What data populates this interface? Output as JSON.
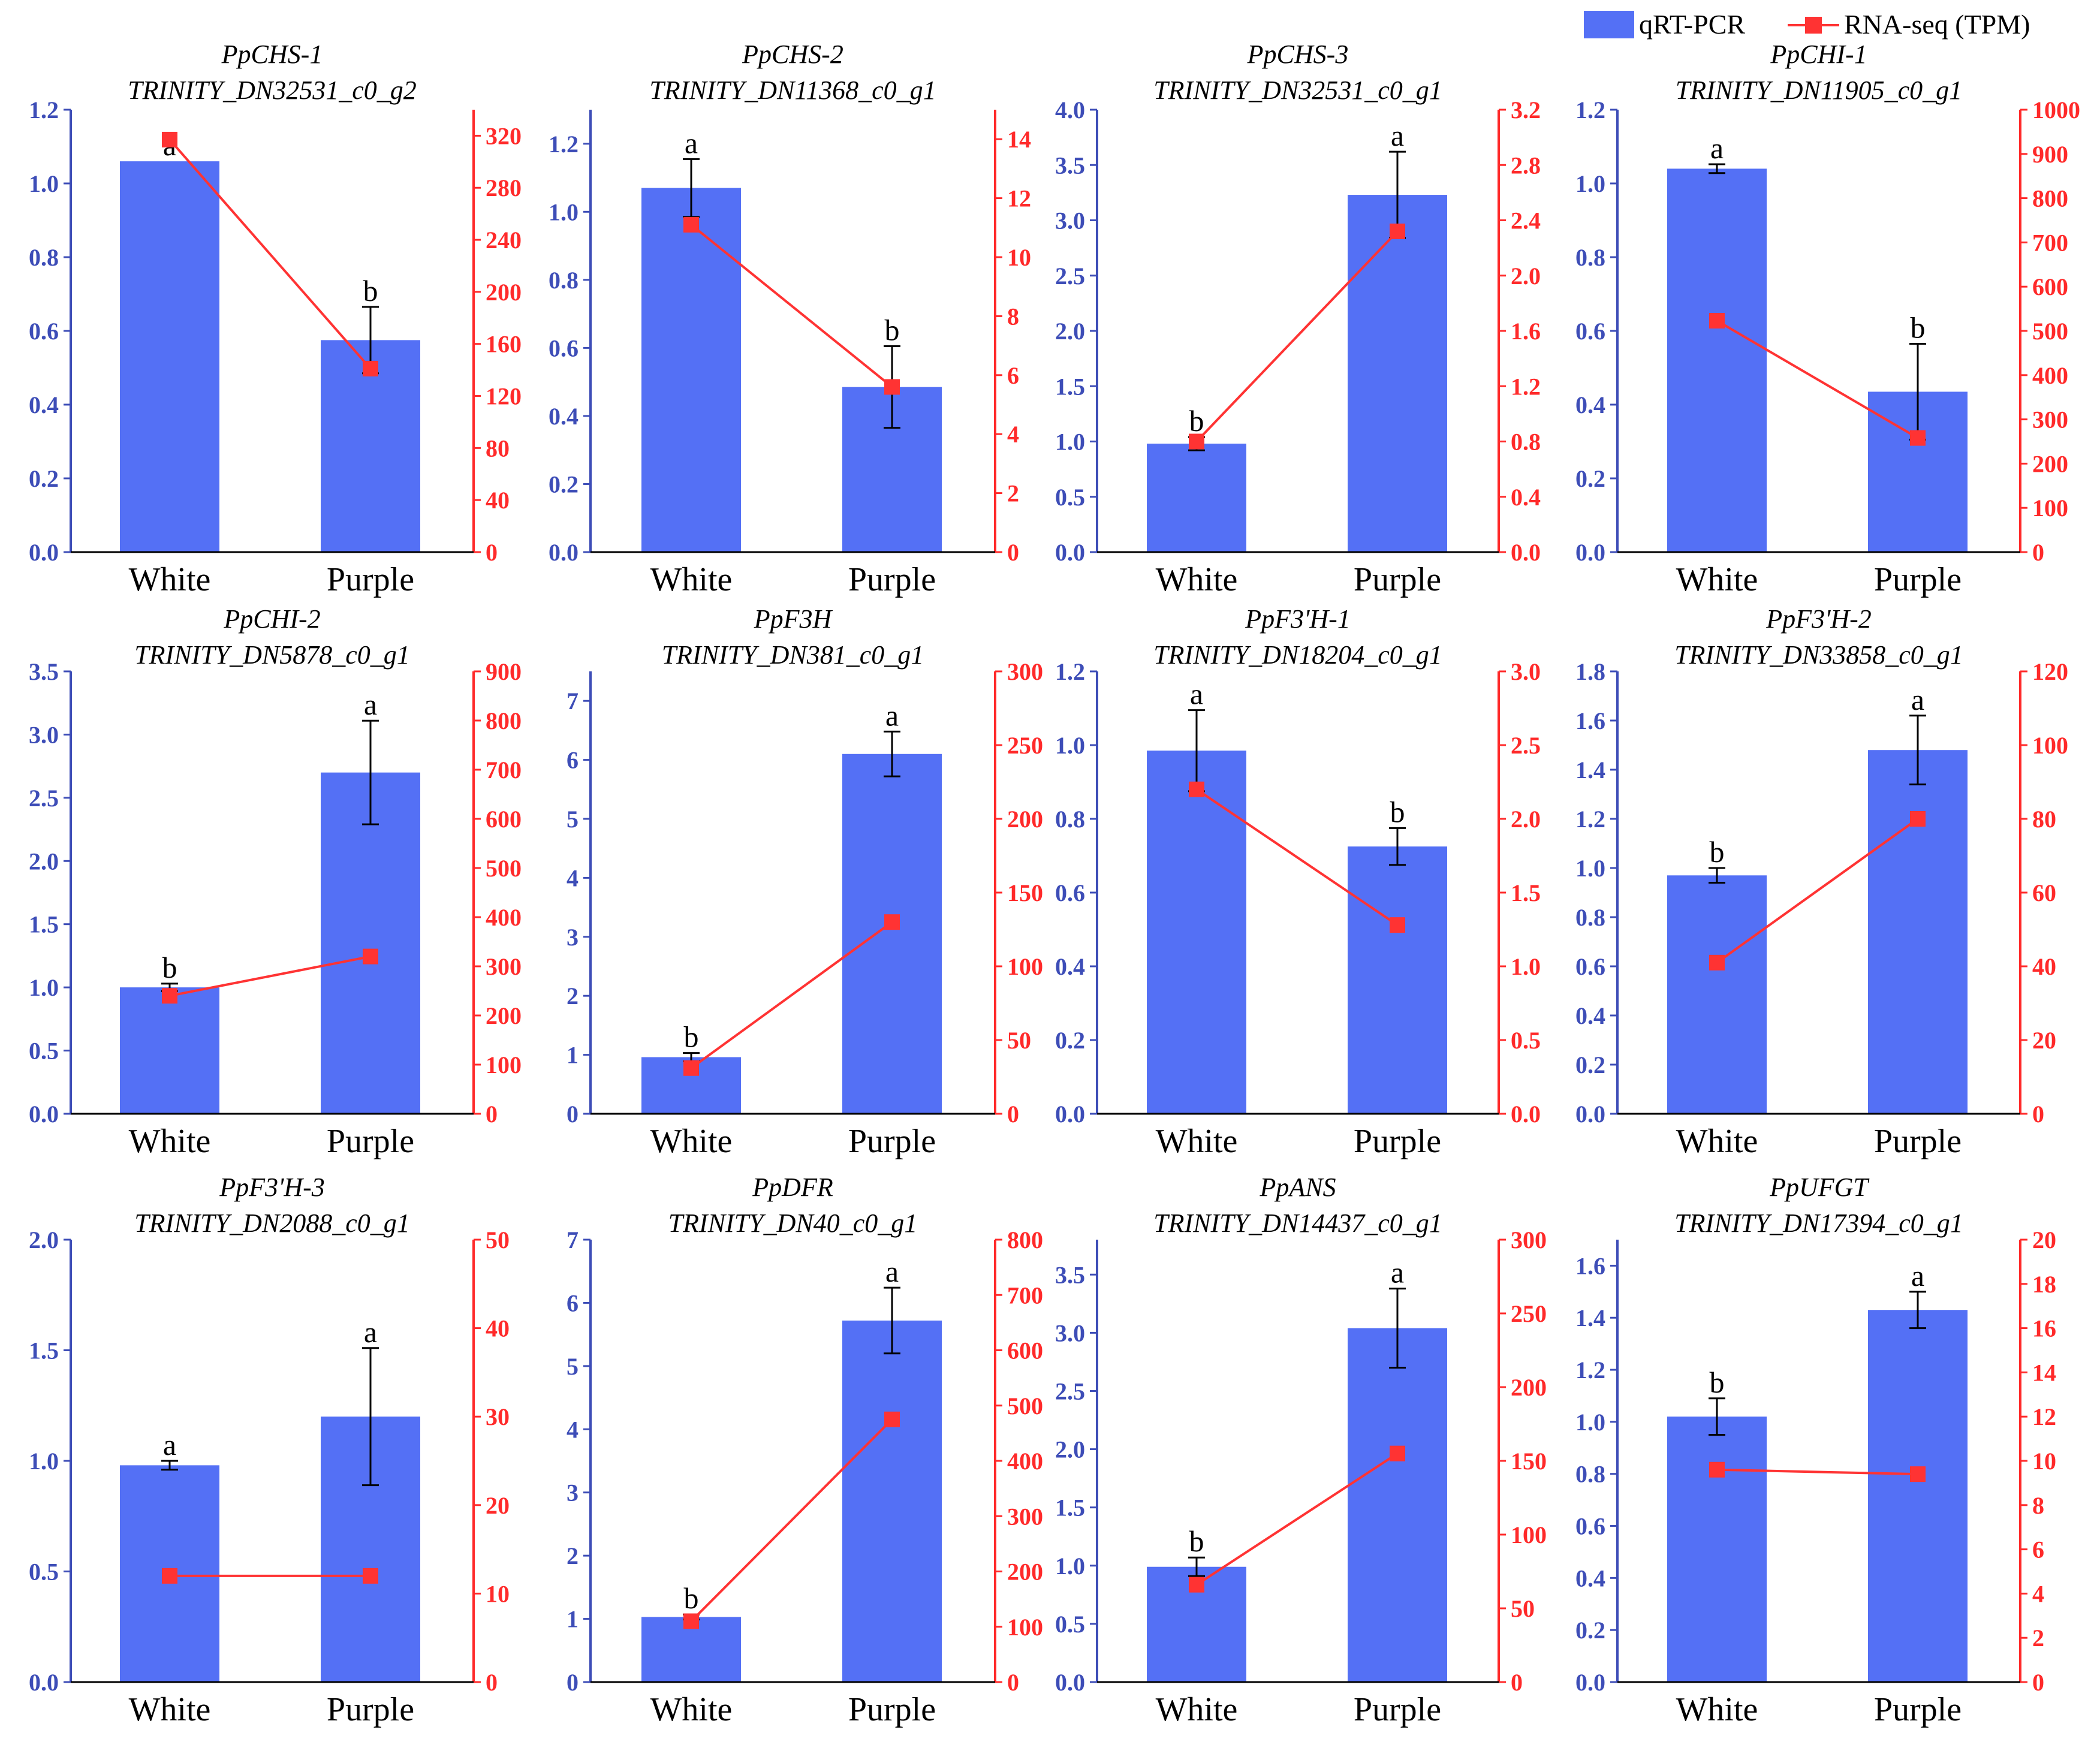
{
  "colors": {
    "bar": "#5470f5",
    "line": "#ff3333",
    "left_axis": "#3d4db7",
    "right_axis": "#ff2a2a",
    "text": "#000000"
  },
  "legend": {
    "bar_label": "qRT-PCR",
    "line_label": "RNA-seq (TPM)"
  },
  "chart_data": [
    {
      "type": "bar+line",
      "gene": "PpCHS-1",
      "transcript": "TRINITY_DN32531_c0_g2",
      "categories": [
        "White",
        "Purple"
      ],
      "series": [
        {
          "name": "qRT-PCR",
          "axis": "left",
          "values": [
            1.06,
            0.575
          ],
          "errors": [
            0.0,
            0.09
          ],
          "significance": [
            "a",
            "b"
          ]
        },
        {
          "name": "RNA-seq (TPM)",
          "axis": "right",
          "values": [
            317,
            141
          ]
        }
      ],
      "left_ylim": [
        0,
        1.2
      ],
      "left_ticks": [
        "0.0",
        "0.2",
        "0.4",
        "0.6",
        "0.8",
        "1.0",
        "1.2"
      ],
      "right_ylim": [
        0,
        340
      ],
      "right_ticks": [
        "0",
        "40",
        "80",
        "120",
        "160",
        "200",
        "240",
        "280",
        "320"
      ]
    },
    {
      "type": "bar+line",
      "gene": "PpCHS-2",
      "transcript": "TRINITY_DN11368_c0_g1",
      "categories": [
        "White",
        "Purple"
      ],
      "series": [
        {
          "name": "qRT-PCR",
          "axis": "left",
          "values": [
            1.07,
            0.485
          ],
          "errors": [
            0.085,
            0.12
          ],
          "significance": [
            "a",
            "b"
          ]
        },
        {
          "name": "RNA-seq (TPM)",
          "axis": "right",
          "values": [
            11.1,
            5.6
          ]
        }
      ],
      "left_ylim": [
        0,
        1.3
      ],
      "left_ticks": [
        "0.0",
        "0.2",
        "0.4",
        "0.6",
        "0.8",
        "1.0",
        "1.2"
      ],
      "right_ylim": [
        0,
        15
      ],
      "right_ticks": [
        "0",
        "2",
        "4",
        "6",
        "8",
        "10",
        "12",
        "14"
      ]
    },
    {
      "type": "bar+line",
      "gene": "PpCHS-3",
      "transcript": "TRINITY_DN32531_c0_g1",
      "categories": [
        "White",
        "Purple"
      ],
      "series": [
        {
          "name": "qRT-PCR",
          "axis": "left",
          "values": [
            0.98,
            3.23
          ],
          "errors": [
            0.06,
            0.39
          ],
          "significance": [
            "b",
            "a"
          ]
        },
        {
          "name": "RNA-seq (TPM)",
          "axis": "right",
          "values": [
            0.8,
            2.32
          ]
        }
      ],
      "left_ylim": [
        0,
        4.0
      ],
      "left_ticks": [
        "0.0",
        "0.5",
        "1.0",
        "1.5",
        "2.0",
        "2.5",
        "3.0",
        "3.5",
        "4.0"
      ],
      "right_ylim": [
        0,
        3.2
      ],
      "right_ticks": [
        "0.0",
        "0.4",
        "0.8",
        "1.2",
        "1.6",
        "2.0",
        "2.4",
        "2.8",
        "3.2"
      ]
    },
    {
      "type": "bar+line",
      "gene": "PpCHI-1",
      "transcript": "TRINITY_DN11905_c0_g1",
      "categories": [
        "White",
        "Purple"
      ],
      "series": [
        {
          "name": "qRT-PCR",
          "axis": "left",
          "values": [
            1.04,
            0.435
          ],
          "errors": [
            0.012,
            0.13
          ],
          "significance": [
            "a",
            "b"
          ]
        },
        {
          "name": "RNA-seq (TPM)",
          "axis": "right",
          "values": [
            523,
            258
          ]
        }
      ],
      "left_ylim": [
        0,
        1.2
      ],
      "left_ticks": [
        "0.0",
        "0.2",
        "0.4",
        "0.6",
        "0.8",
        "1.0",
        "1.2"
      ],
      "right_ylim": [
        0,
        1000
      ],
      "right_ticks": [
        "0",
        "100",
        "200",
        "300",
        "400",
        "500",
        "600",
        "700",
        "800",
        "900",
        "1000"
      ]
    },
    {
      "type": "bar+line",
      "gene": "PpCHI-2",
      "transcript": "TRINITY_DN5878_c0_g1",
      "categories": [
        "White",
        "Purple"
      ],
      "series": [
        {
          "name": "qRT-PCR",
          "axis": "left",
          "values": [
            1.0,
            2.7
          ],
          "errors": [
            0.03,
            0.41
          ],
          "significance": [
            "b",
            "a"
          ]
        },
        {
          "name": "RNA-seq (TPM)",
          "axis": "right",
          "values": [
            240,
            320
          ]
        }
      ],
      "left_ylim": [
        0,
        3.5
      ],
      "left_ticks": [
        "0.0",
        "0.5",
        "1.0",
        "1.5",
        "2.0",
        "2.5",
        "3.0",
        "3.5"
      ],
      "right_ylim": [
        0,
        900
      ],
      "right_ticks": [
        "0",
        "100",
        "200",
        "300",
        "400",
        "500",
        "600",
        "700",
        "800",
        "900"
      ]
    },
    {
      "type": "bar+line",
      "gene": "PpF3H",
      "transcript": "TRINITY_DN381_c0_g1",
      "categories": [
        "White",
        "Purple"
      ],
      "series": [
        {
          "name": "qRT-PCR",
          "axis": "left",
          "values": [
            0.96,
            6.1
          ],
          "errors": [
            0.07,
            0.38
          ],
          "significance": [
            "b",
            "a"
          ]
        },
        {
          "name": "RNA-seq (TPM)",
          "axis": "right",
          "values": [
            31,
            130
          ]
        }
      ],
      "left_ylim": [
        0,
        7.5
      ],
      "left_ticks": [
        "0",
        "1",
        "2",
        "3",
        "4",
        "5",
        "6",
        "7"
      ],
      "right_ylim": [
        0,
        300
      ],
      "right_ticks": [
        "0",
        "50",
        "100",
        "150",
        "200",
        "250",
        "300"
      ]
    },
    {
      "type": "bar+line",
      "gene": "PpF3'H-1",
      "transcript": "TRINITY_DN18204_c0_g1",
      "categories": [
        "White",
        "Purple"
      ],
      "series": [
        {
          "name": "qRT-PCR",
          "axis": "left",
          "values": [
            0.985,
            0.725
          ],
          "errors": [
            0.11,
            0.05
          ],
          "significance": [
            "a",
            "b"
          ]
        },
        {
          "name": "RNA-seq (TPM)",
          "axis": "right",
          "values": [
            2.2,
            1.28
          ]
        }
      ],
      "left_ylim": [
        0,
        1.2
      ],
      "left_ticks": [
        "0.0",
        "0.2",
        "0.4",
        "0.6",
        "0.8",
        "1.0",
        "1.2"
      ],
      "right_ylim": [
        0,
        3.0
      ],
      "right_ticks": [
        "0.0",
        "0.5",
        "1.0",
        "1.5",
        "2.0",
        "2.5",
        "3.0"
      ]
    },
    {
      "type": "bar+line",
      "gene": "PpF3'H-2",
      "transcript": "TRINITY_DN33858_c0_g1",
      "categories": [
        "White",
        "Purple"
      ],
      "series": [
        {
          "name": "qRT-PCR",
          "axis": "left",
          "values": [
            0.97,
            1.48
          ],
          "errors": [
            0.03,
            0.14
          ],
          "significance": [
            "b",
            "a"
          ]
        },
        {
          "name": "RNA-seq (TPM)",
          "axis": "right",
          "values": [
            41,
            80
          ]
        }
      ],
      "left_ylim": [
        0,
        1.8
      ],
      "left_ticks": [
        "0.0",
        "0.2",
        "0.4",
        "0.6",
        "0.8",
        "1.0",
        "1.2",
        "1.4",
        "1.6",
        "1.8"
      ],
      "right_ylim": [
        0,
        120
      ],
      "right_ticks": [
        "0",
        "20",
        "40",
        "60",
        "80",
        "100",
        "120"
      ]
    },
    {
      "type": "bar+line",
      "gene": "PpF3'H-3",
      "transcript": "TRINITY_DN2088_c0_g1",
      "categories": [
        "White",
        "Purple"
      ],
      "series": [
        {
          "name": "qRT-PCR",
          "axis": "left",
          "values": [
            0.98,
            1.2
          ],
          "errors": [
            0.02,
            0.31
          ],
          "significance": [
            "a",
            "a"
          ]
        },
        {
          "name": "RNA-seq (TPM)",
          "axis": "right",
          "values": [
            12,
            12
          ]
        }
      ],
      "left_ylim": [
        0,
        2.0
      ],
      "left_ticks": [
        "0.0",
        "0.5",
        "1.0",
        "1.5",
        "2.0"
      ],
      "right_ylim": [
        0,
        50
      ],
      "right_ticks": [
        "0",
        "10",
        "20",
        "30",
        "40",
        "50"
      ]
    },
    {
      "type": "bar+line",
      "gene": "PpDFR",
      "transcript": "TRINITY_DN40_c0_g1",
      "categories": [
        "White",
        "Purple"
      ],
      "series": [
        {
          "name": "qRT-PCR",
          "axis": "left",
          "values": [
            1.03,
            5.72
          ],
          "errors": [
            0.04,
            0.52
          ],
          "significance": [
            "b",
            "a"
          ]
        },
        {
          "name": "RNA-seq (TPM)",
          "axis": "right",
          "values": [
            110,
            475
          ]
        }
      ],
      "left_ylim": [
        0,
        7.0
      ],
      "left_ticks": [
        "0",
        "1",
        "2",
        "3",
        "4",
        "5",
        "6",
        "7"
      ],
      "right_ylim": [
        0,
        800
      ],
      "right_ticks": [
        "0",
        "100",
        "200",
        "300",
        "400",
        "500",
        "600",
        "700",
        "800"
      ]
    },
    {
      "type": "bar+line",
      "gene": "PpANS",
      "transcript": "TRINITY_DN14437_c0_g1",
      "categories": [
        "White",
        "Purple"
      ],
      "series": [
        {
          "name": "qRT-PCR",
          "axis": "left",
          "values": [
            0.99,
            3.04
          ],
          "errors": [
            0.08,
            0.34
          ],
          "significance": [
            "b",
            "a"
          ]
        },
        {
          "name": "RNA-seq (TPM)",
          "axis": "right",
          "values": [
            66,
            155
          ]
        }
      ],
      "left_ylim": [
        0,
        3.8
      ],
      "left_ticks": [
        "0.0",
        "0.5",
        "1.0",
        "1.5",
        "2.0",
        "2.5",
        "3.0",
        "3.5"
      ],
      "right_ylim": [
        0,
        300
      ],
      "right_ticks": [
        "0",
        "50",
        "100",
        "150",
        "200",
        "250",
        "300"
      ]
    },
    {
      "type": "bar+line",
      "gene": "PpUFGT",
      "transcript": "TRINITY_DN17394_c0_g1",
      "categories": [
        "White",
        "Purple"
      ],
      "series": [
        {
          "name": "qRT-PCR",
          "axis": "left",
          "values": [
            1.02,
            1.43
          ],
          "errors": [
            0.07,
            0.07
          ],
          "significance": [
            "b",
            "a"
          ]
        },
        {
          "name": "RNA-seq (TPM)",
          "axis": "right",
          "values": [
            9.6,
            9.4
          ]
        }
      ],
      "left_ylim": [
        0,
        1.7
      ],
      "left_ticks": [
        "0.0",
        "0.2",
        "0.4",
        "0.6",
        "0.8",
        "1.0",
        "1.2",
        "1.4",
        "1.6"
      ],
      "right_ylim": [
        0,
        20
      ],
      "right_ticks": [
        "0",
        "2",
        "4",
        "6",
        "8",
        "10",
        "12",
        "14",
        "16",
        "18",
        "20"
      ]
    }
  ]
}
